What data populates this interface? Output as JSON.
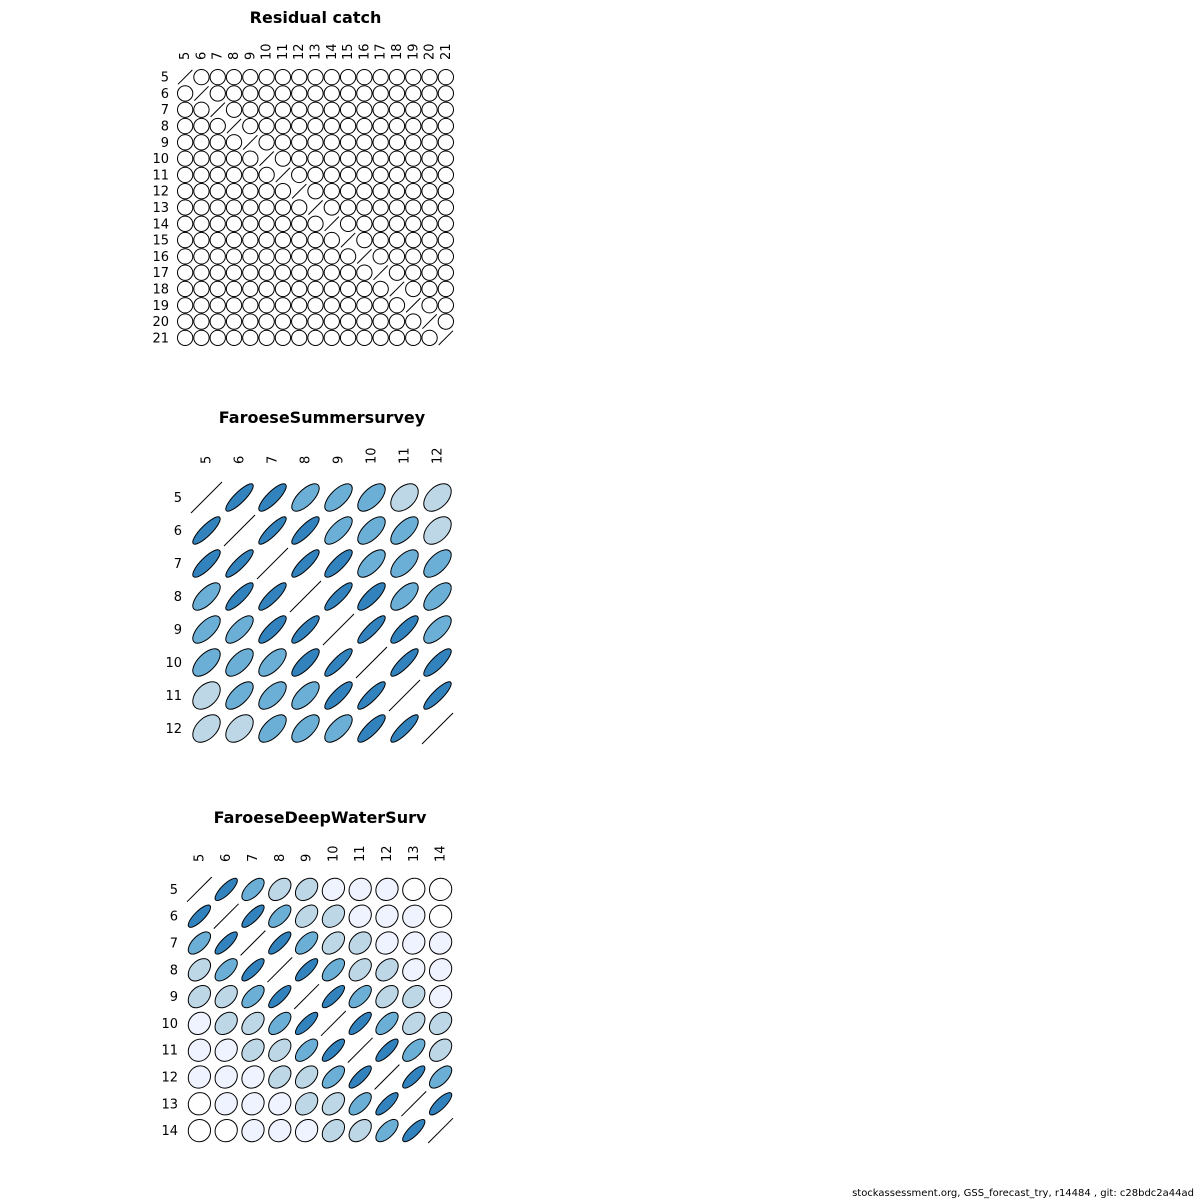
{
  "footer": "stockassessment.org, GSS_forecast_try, r14484 , git: c28bdc2a44ad",
  "palette": {
    "low": "#ffffff",
    "mid_low": "#eff3ff",
    "mid": "#bdd7e7",
    "mid_high": "#6baed6",
    "high": "#3182bd",
    "outline": "#000000"
  },
  "chart_data": [
    {
      "type": "heatmap",
      "subtype": "correlation-ellipse",
      "title": "Residual catch",
      "labels": [
        "5",
        "6",
        "7",
        "8",
        "9",
        "10",
        "11",
        "12",
        "13",
        "14",
        "15",
        "16",
        "17",
        "18",
        "19",
        "20",
        "21"
      ],
      "diagonal": "line",
      "correlation": "uniform",
      "off_diagonal_value": 0.0
    },
    {
      "type": "heatmap",
      "subtype": "correlation-ellipse",
      "title": "FaroeseSummersurvey",
      "labels": [
        "5",
        "6",
        "7",
        "8",
        "9",
        "10",
        "11",
        "12"
      ],
      "diagonal": "line",
      "matrix": [
        [
          1.0,
          0.85,
          0.82,
          0.68,
          0.66,
          0.6,
          0.42,
          0.45
        ],
        [
          0.85,
          1.0,
          0.87,
          0.84,
          0.7,
          0.63,
          0.65,
          0.45
        ],
        [
          0.82,
          0.87,
          1.0,
          0.85,
          0.82,
          0.65,
          0.62,
          0.62
        ],
        [
          0.68,
          0.84,
          0.85,
          1.0,
          0.85,
          0.8,
          0.65,
          0.62
        ],
        [
          0.66,
          0.7,
          0.82,
          0.85,
          1.0,
          0.86,
          0.82,
          0.65
        ],
        [
          0.6,
          0.63,
          0.65,
          0.8,
          0.86,
          1.0,
          0.86,
          0.82
        ],
        [
          0.42,
          0.65,
          0.62,
          0.65,
          0.82,
          0.86,
          1.0,
          0.86
        ],
        [
          0.45,
          0.45,
          0.62,
          0.62,
          0.65,
          0.82,
          0.86,
          1.0
        ]
      ]
    },
    {
      "type": "heatmap",
      "subtype": "correlation-ellipse",
      "title": "FaroeseDeepWaterSurv",
      "labels": [
        "5",
        "6",
        "7",
        "8",
        "9",
        "10",
        "11",
        "12",
        "13",
        "14"
      ],
      "diagonal": "line",
      "matrix": [
        [
          1.0,
          0.8,
          0.62,
          0.4,
          0.32,
          0.15,
          0.1,
          0.08,
          0.06,
          0.02
        ],
        [
          0.8,
          1.0,
          0.8,
          0.62,
          0.42,
          0.32,
          0.15,
          0.12,
          0.1,
          0.06
        ],
        [
          0.62,
          0.8,
          1.0,
          0.8,
          0.6,
          0.42,
          0.32,
          0.16,
          0.12,
          0.1
        ],
        [
          0.4,
          0.62,
          0.8,
          1.0,
          0.8,
          0.6,
          0.42,
          0.34,
          0.16,
          0.12
        ],
        [
          0.32,
          0.42,
          0.6,
          0.8,
          1.0,
          0.8,
          0.62,
          0.42,
          0.32,
          0.15
        ],
        [
          0.15,
          0.32,
          0.42,
          0.6,
          0.8,
          1.0,
          0.8,
          0.62,
          0.4,
          0.32
        ],
        [
          0.1,
          0.15,
          0.32,
          0.42,
          0.62,
          0.8,
          1.0,
          0.8,
          0.62,
          0.4
        ],
        [
          0.08,
          0.12,
          0.16,
          0.34,
          0.42,
          0.62,
          0.8,
          1.0,
          0.8,
          0.62
        ],
        [
          0.06,
          0.1,
          0.12,
          0.16,
          0.32,
          0.4,
          0.62,
          0.8,
          1.0,
          0.8
        ],
        [
          0.02,
          0.06,
          0.1,
          0.12,
          0.15,
          0.32,
          0.4,
          0.62,
          0.8,
          1.0
        ]
      ]
    }
  ]
}
